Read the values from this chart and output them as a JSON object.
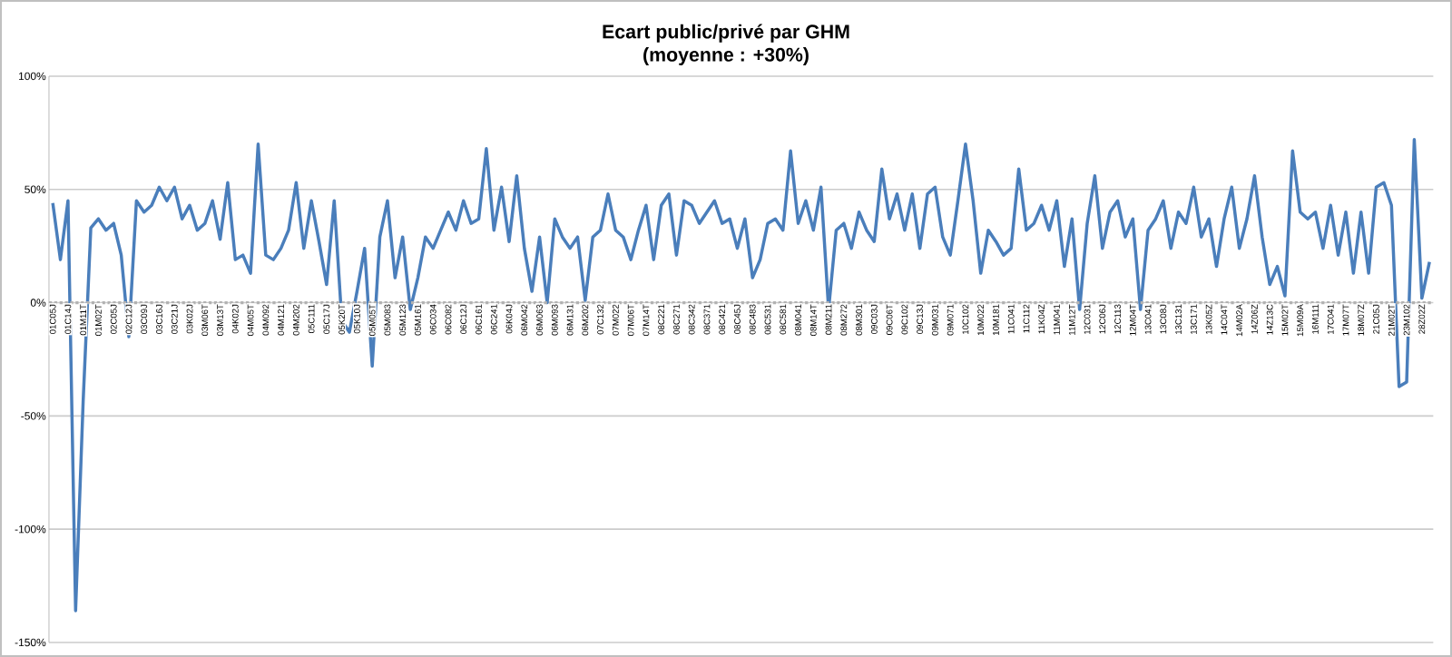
{
  "chart_data": {
    "type": "line",
    "title": "Ecart public/privé par GHM",
    "subtitle": "(moyenne : +30%)",
    "categories": [
      "01C05J",
      null,
      "01C14J",
      null,
      "01M11T",
      null,
      "01M02T",
      null,
      "02C05J",
      null,
      "02C12J",
      null,
      "03C09J",
      null,
      "03C16J",
      null,
      "03C21J",
      null,
      "03K02J",
      null,
      "03M06T",
      null,
      "03M13T",
      null,
      "04K02J",
      null,
      "04M05T",
      null,
      "04M092",
      null,
      "04M121",
      null,
      "04M202",
      null,
      "05C111",
      null,
      "05C17J",
      null,
      "05K20T",
      null,
      "05K10J",
      null,
      "05M05T",
      null,
      "05M083",
      null,
      "05M123",
      null,
      "05M161",
      null,
      "06C034",
      null,
      "06C082",
      null,
      "06C12J",
      null,
      "06C161",
      null,
      "06C241",
      null,
      "06K04J",
      null,
      "06M042",
      null,
      "06M063",
      null,
      "06M093",
      null,
      "06M131",
      null,
      "06M202",
      null,
      "07C132",
      null,
      "07M022",
      null,
      "07M06T",
      null,
      "07M14T",
      null,
      "08C221",
      null,
      "08C271",
      null,
      "08C342",
      null,
      "08C371",
      null,
      "08C421",
      null,
      "08C45J",
      null,
      "08C483",
      null,
      "08C531",
      null,
      "08C581",
      null,
      "08M041",
      null,
      "08M14T",
      null,
      "08M211",
      null,
      "08M272",
      null,
      "08M301",
      null,
      "09C03J",
      null,
      "09C06T",
      null,
      "09C102",
      null,
      "09C13J",
      null,
      "09M031",
      null,
      "09M071",
      null,
      "10C102",
      null,
      "10M022",
      null,
      "10M181",
      null,
      "11C041",
      null,
      "11C112",
      null,
      "11K04Z",
      null,
      "11M041",
      null,
      "11M12T",
      null,
      "12C031",
      null,
      "12C06J",
      null,
      "12C113",
      null,
      "12M04T",
      null,
      "13C041",
      null,
      "13C08J",
      null,
      "13C131",
      null,
      "13C171",
      null,
      "13K05Z",
      null,
      "14C04T",
      null,
      "14M02A",
      null,
      "14Z06Z",
      null,
      "14Z13C",
      null,
      "15M02T",
      null,
      "15M09A",
      null,
      "16M111",
      null,
      "17C041",
      null,
      "17M07T",
      null,
      "18M07Z",
      null,
      "21C05J",
      null,
      "21M02T",
      null,
      "23M102",
      null,
      "28Z02Z",
      null
    ],
    "values": [
      44,
      19,
      45,
      -136,
      -43,
      33,
      37,
      32,
      35,
      21,
      -15,
      45,
      40,
      43,
      51,
      45,
      51,
      37,
      43,
      32,
      35,
      45,
      28,
      53,
      19,
      21,
      13,
      70,
      21,
      19,
      24,
      32,
      53,
      24,
      45,
      27,
      8,
      45,
      -8,
      -13,
      5,
      24,
      -28,
      29,
      45,
      11,
      29,
      -3,
      11,
      29,
      24,
      32,
      40,
      32,
      45,
      35,
      37,
      68,
      32,
      51,
      27,
      56,
      24,
      5,
      29,
      0,
      37,
      29,
      24,
      29,
      1,
      29,
      32,
      48,
      32,
      29,
      19,
      32,
      43,
      19,
      43,
      48,
      21,
      45,
      43,
      35,
      40,
      45,
      35,
      37,
      24,
      37,
      11,
      19,
      35,
      37,
      32,
      67,
      35,
      45,
      32,
      51,
      -3,
      32,
      35,
      24,
      40,
      32,
      27,
      59,
      37,
      48,
      32,
      48,
      24,
      48,
      51,
      29,
      21,
      45,
      70,
      45,
      13,
      32,
      27,
      21,
      24,
      59,
      32,
      35,
      43,
      32,
      45,
      16,
      37,
      -3,
      35,
      56,
      24,
      40,
      45,
      29,
      37,
      -3,
      32,
      37,
      45,
      24,
      40,
      35,
      51,
      29,
      37,
      16,
      37,
      51,
      24,
      37,
      56,
      29,
      8,
      16,
      3,
      67,
      40,
      37,
      40,
      24,
      43,
      21,
      40,
      13,
      40,
      13,
      51,
      53,
      43,
      -37,
      -35,
      72,
      2,
      18
    ],
    "color": "#4a7ebb",
    "ylim": [
      -150,
      100
    ],
    "yticks": [
      {
        "value": -150,
        "label": "-150%"
      },
      {
        "value": -100,
        "label": "-100%"
      },
      {
        "value": -50,
        "label": "-50%"
      },
      {
        "value": 0,
        "label": "0%"
      },
      {
        "value": 50,
        "label": "50%"
      },
      {
        "value": 100,
        "label": "100%"
      }
    ],
    "grid": "y",
    "ref_lines": [
      {
        "axis": "y",
        "value": 0,
        "color": "#b2b2b2",
        "line_style": "dotted"
      }
    ]
  }
}
